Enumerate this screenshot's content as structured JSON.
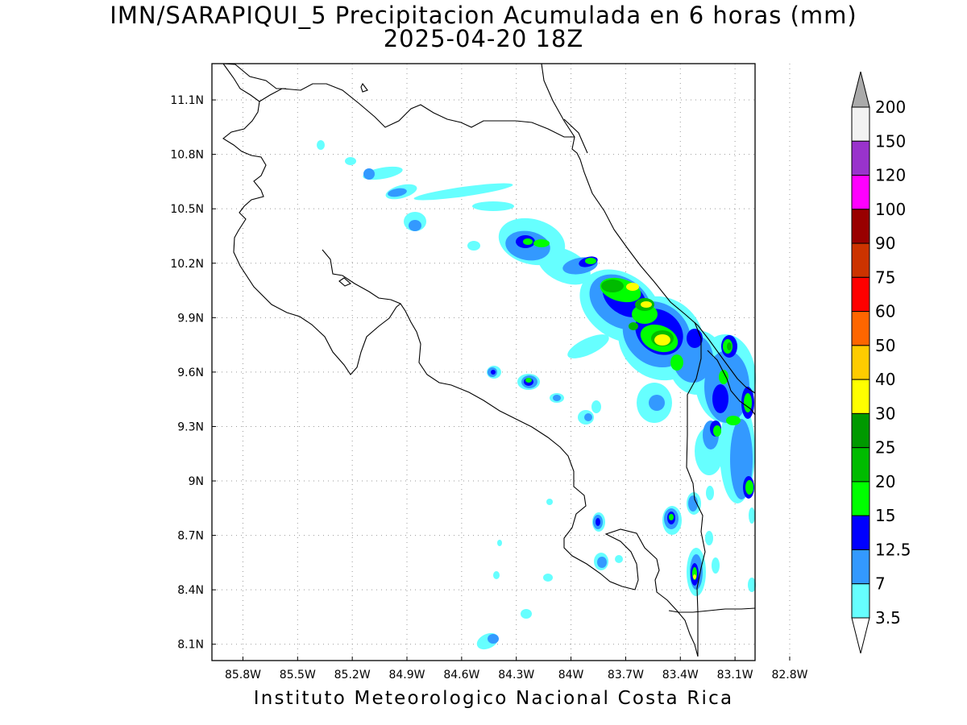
{
  "title": "IMN/SARAPIQUI_5 Precipitacion Acumulada en 6 horas (mm)",
  "subtitle": "2025-04-20 18Z",
  "footer": "Instituto Meteorologico Nacional Costa Rica",
  "map": {
    "lon_ticks": [
      "85.8W",
      "85.5W",
      "85.2W",
      "84.9W",
      "84.6W",
      "84.3W",
      "84W",
      "83.7W",
      "83.4W",
      "83.1W",
      "82.8W"
    ],
    "lat_ticks": [
      "11.1N",
      "10.8N",
      "10.5N",
      "10.2N",
      "9.9N",
      "9.6N",
      "9.3N",
      "9N",
      "8.7N",
      "8.4N",
      "8.1N"
    ],
    "lon_range": [
      -85.97,
      -82.99
    ],
    "lat_range": [
      8.01,
      11.3
    ],
    "grid": true,
    "land_color": "#ffffff",
    "coastline_color": "#000000"
  },
  "colorbar": {
    "labels": [
      "200",
      "150",
      "120",
      "100",
      "90",
      "75",
      "60",
      "50",
      "40",
      "30",
      "25",
      "20",
      "15",
      "12.5",
      "7",
      "3.5"
    ],
    "colors": [
      "#f2f2f2",
      "#9933cc",
      "#ff00ff",
      "#990000",
      "#cc3300",
      "#ff0000",
      "#ff6600",
      "#ffcc00",
      "#ffff00",
      "#009900",
      "#00bb00",
      "#00ff00",
      "#0000ff",
      "#3399ff",
      "#66ffff"
    ],
    "over_color": "#aaaaaa",
    "under_color": "#ffffff"
  },
  "precip_levels": {
    "l3_5": "#66ffff",
    "l7": "#3399ff",
    "l12_5": "#0000ff",
    "l15": "#00ff00",
    "l20": "#00bb00",
    "l25": "#009900",
    "l30": "#ffff00"
  }
}
